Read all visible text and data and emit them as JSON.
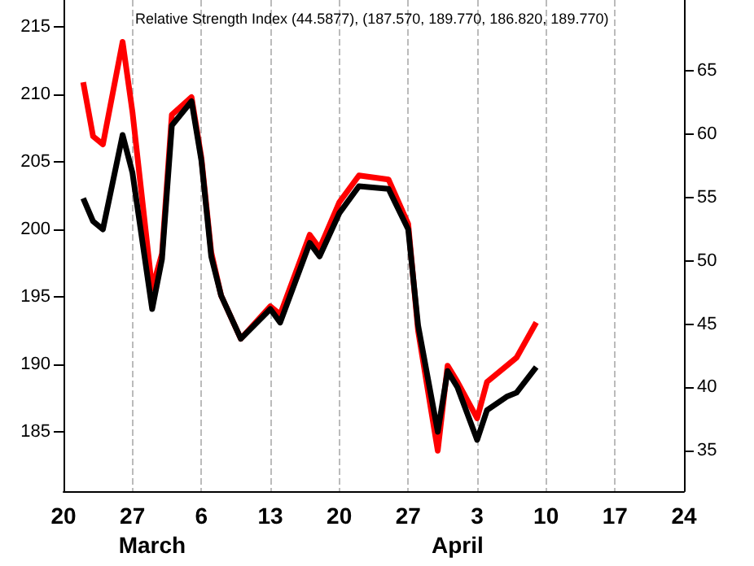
{
  "chart_data": {
    "type": "line",
    "title": "Relative Strength Index (44.5877), (187.570, 189.770, 186.820, 189.770)",
    "x": [
      "--02-22",
      "--02-23",
      "--02-24",
      "--02-26",
      "--02-27",
      "--03-01",
      "--03-02",
      "--03-03",
      "--03-05",
      "--03-06",
      "--03-07",
      "--03-08",
      "--03-10",
      "--03-13",
      "--03-14",
      "--03-17",
      "--03-18",
      "--03-20",
      "--03-22",
      "--03-25",
      "--03-27",
      "--03-28",
      "--03-30",
      "--03-31",
      "--04-01",
      "--04-03",
      "--04-04",
      "--04-06",
      "--04-07",
      "--04-09"
    ],
    "series": [
      {
        "color": "#ff0000",
        "values": [
          210.9,
          206.9,
          206.3,
          213.9,
          208.7,
          195.6,
          198.2,
          208.5,
          209.8,
          205.3,
          198.3,
          195.1,
          191.9,
          194.3,
          193.7,
          199.6,
          198.6,
          202.0,
          204.0,
          203.7,
          200.4,
          192.5,
          183.6,
          189.9,
          188.7,
          186.0,
          188.7,
          189.9,
          190.5,
          193.1
        ]
      },
      {
        "color": "#000000",
        "values": [
          202.3,
          200.6,
          200.0,
          207.0,
          204.2,
          194.1,
          197.8,
          207.7,
          209.5,
          205.1,
          198.0,
          195.1,
          191.9,
          194.1,
          193.1,
          199.0,
          198.0,
          201.2,
          203.2,
          203.0,
          200.0,
          192.9,
          185.0,
          189.5,
          188.3,
          184.4,
          186.6,
          187.6,
          187.9,
          189.8
        ]
      }
    ],
    "xlim": [
      "--02-20",
      "--04-24"
    ],
    "xticks": [
      {
        "value": "--02-20",
        "label": "20"
      },
      {
        "value": "--02-27",
        "label": "27"
      },
      {
        "value": "--03-06",
        "label": "6"
      },
      {
        "value": "--03-13",
        "label": "13"
      },
      {
        "value": "--03-20",
        "label": "20"
      },
      {
        "value": "--03-27",
        "label": "27"
      },
      {
        "value": "--04-03",
        "label": "3"
      },
      {
        "value": "--04-10",
        "label": "10"
      },
      {
        "value": "--04-17",
        "label": "17"
      },
      {
        "value": "--04-24",
        "label": "24"
      }
    ],
    "x2lim": [
      "--02-20",
      "--04-24"
    ],
    "x2ticks": [
      {
        "value": "--03-01",
        "label": "March"
      },
      {
        "value": "--04-01",
        "label": "April"
      }
    ],
    "ylim": [
      180.6,
      217
    ],
    "yticks": [
      185,
      190,
      195,
      200,
      205,
      210,
      215
    ],
    "y2lim": [
      31.8,
      70.6
    ],
    "y2ticks": [
      35,
      40,
      45,
      50,
      55,
      60,
      65
    ],
    "grid": "x"
  }
}
